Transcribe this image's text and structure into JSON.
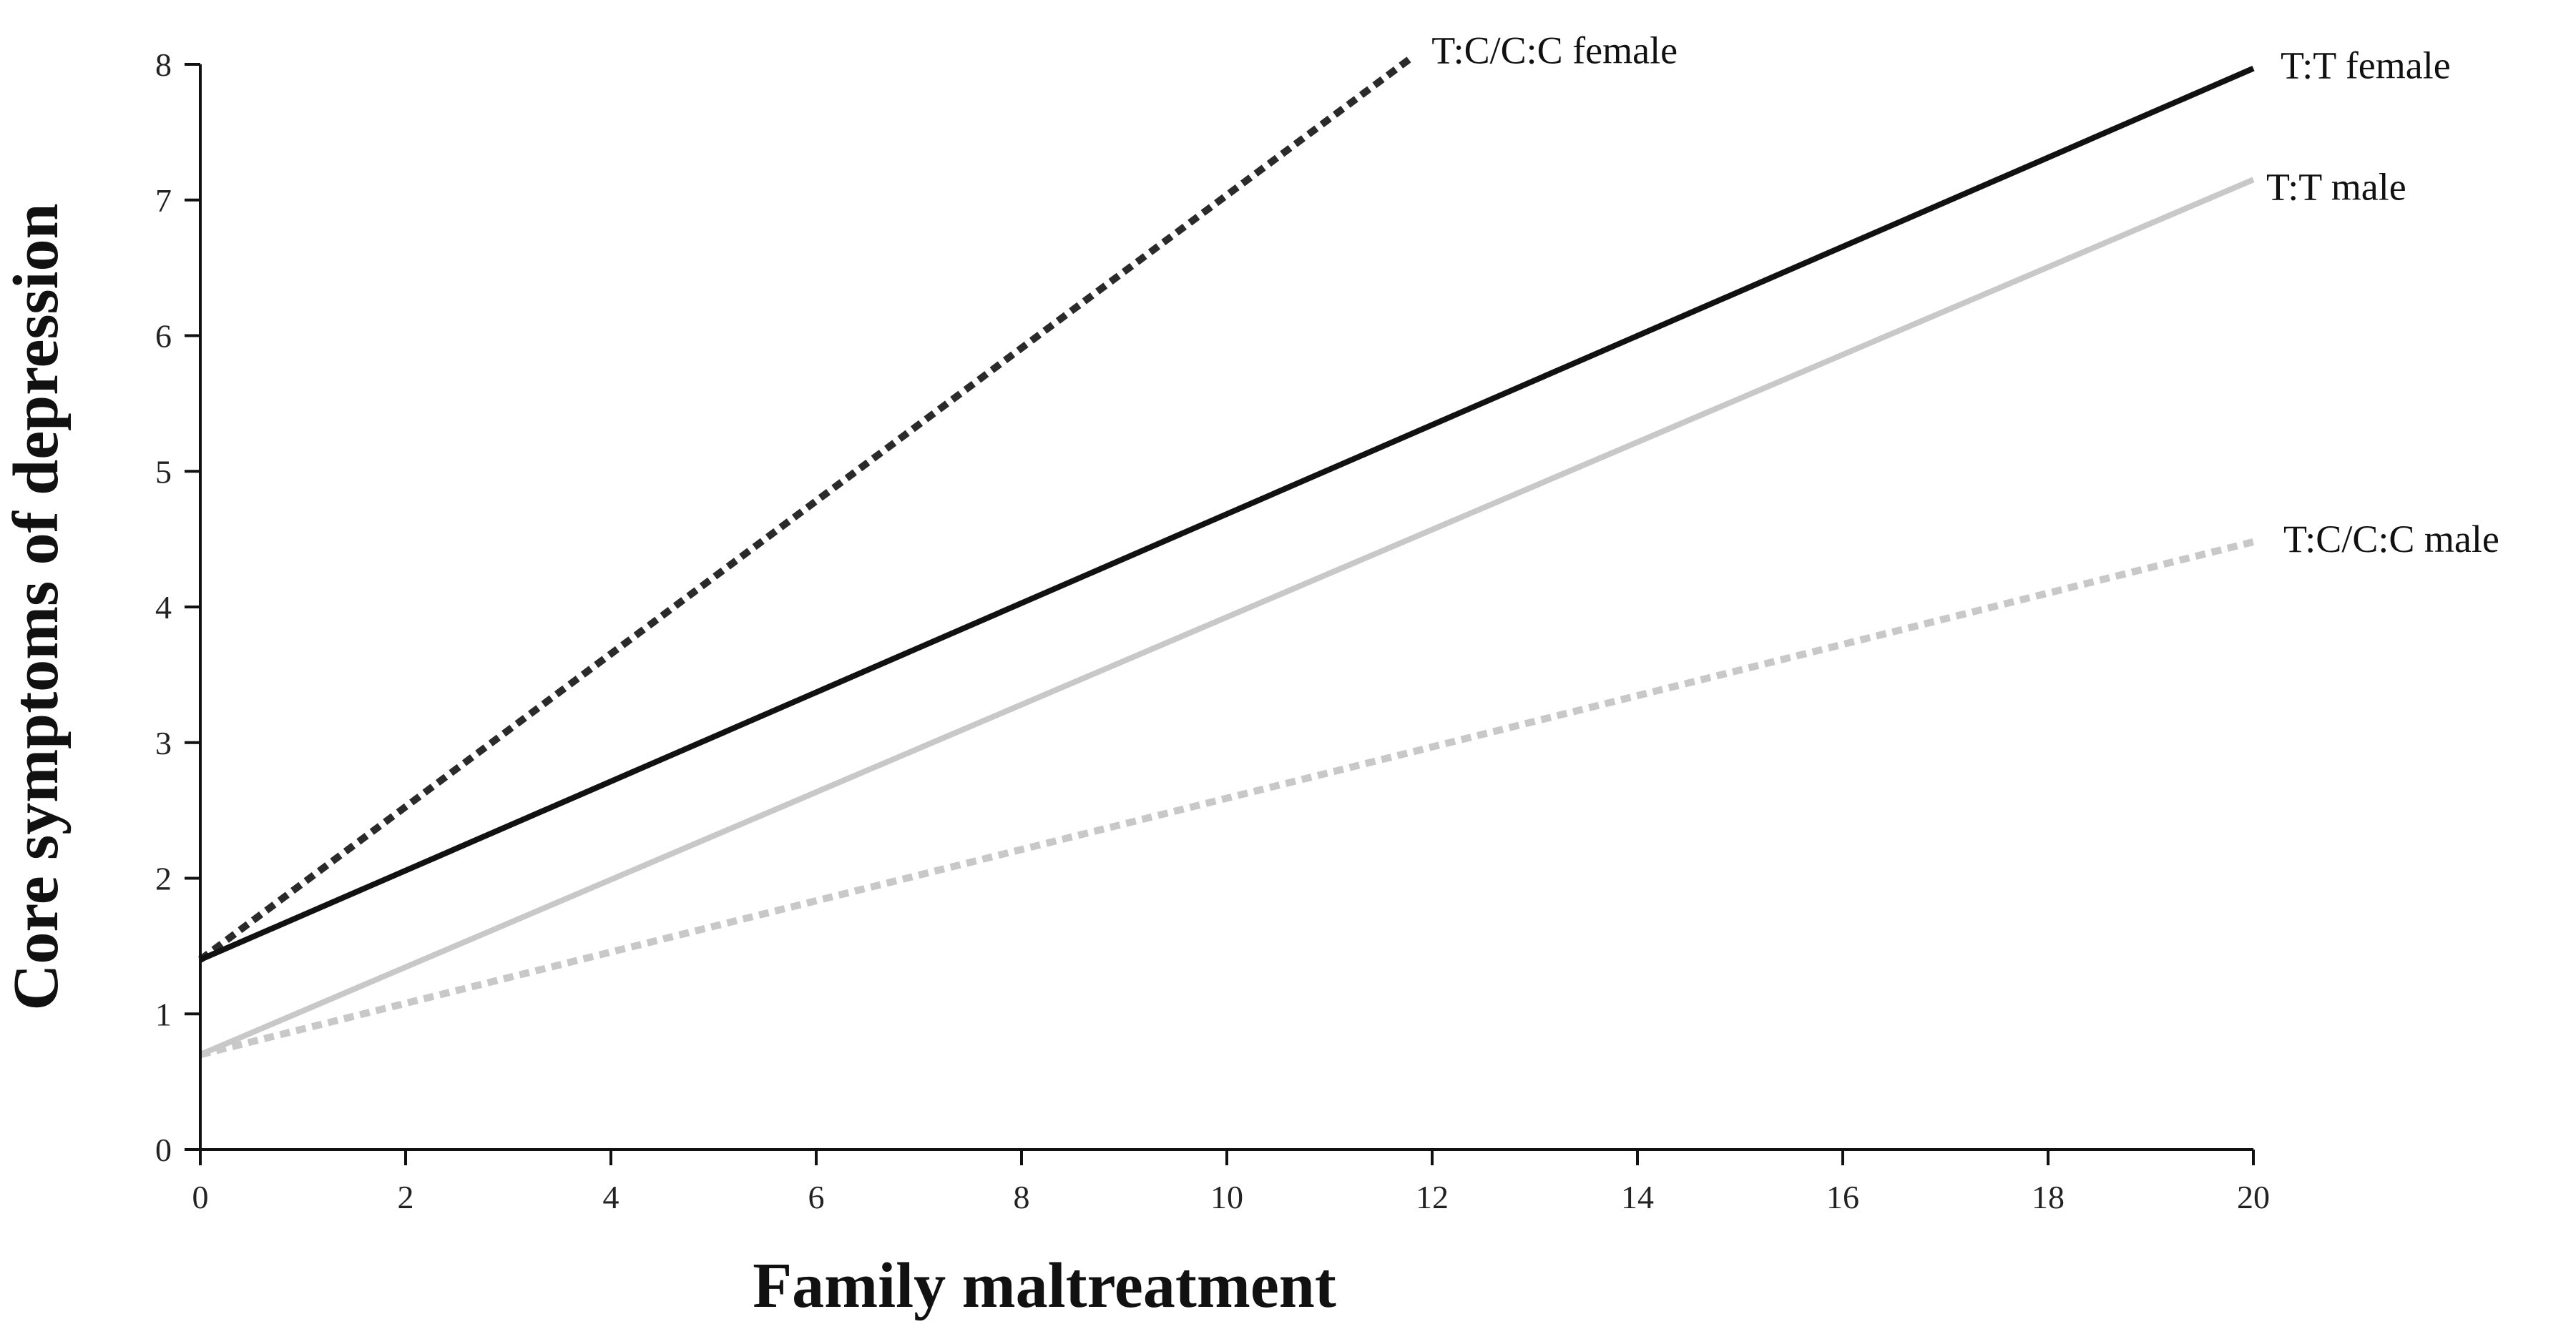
{
  "chart_data": {
    "type": "line",
    "title": "",
    "xlabel": "Family maltreatment",
    "ylabel": "Core symptoms of depression",
    "xlim": [
      0,
      20
    ],
    "ylim": [
      0,
      8
    ],
    "xticks": [
      0,
      2,
      4,
      6,
      8,
      10,
      12,
      14,
      16,
      18,
      20
    ],
    "yticks": [
      0,
      1,
      2,
      3,
      4,
      5,
      6,
      7,
      8
    ],
    "grid": false,
    "legend": "inline labels at line ends",
    "series": [
      {
        "name": "T:C/C:C female",
        "label": "T:C/C:C female",
        "x": [
          0,
          11.8
        ],
        "y": [
          1.4,
          8.05
        ],
        "color": "#2a2a2a",
        "style": "dotted"
      },
      {
        "name": "T:T female",
        "label": "T:T female",
        "x": [
          0,
          20
        ],
        "y": [
          1.4,
          7.97
        ],
        "color": "#111111",
        "style": "solid"
      },
      {
        "name": "T:T male",
        "label": "T:T male",
        "x": [
          0,
          20
        ],
        "y": [
          0.7,
          7.15
        ],
        "color": "#c8c8c8",
        "style": "solid"
      },
      {
        "name": "T:C/C:C male",
        "label": "T:C/C:C male",
        "x": [
          0,
          20
        ],
        "y": [
          0.7,
          4.48
        ],
        "color": "#c8c8c8",
        "style": "dotted"
      }
    ]
  }
}
